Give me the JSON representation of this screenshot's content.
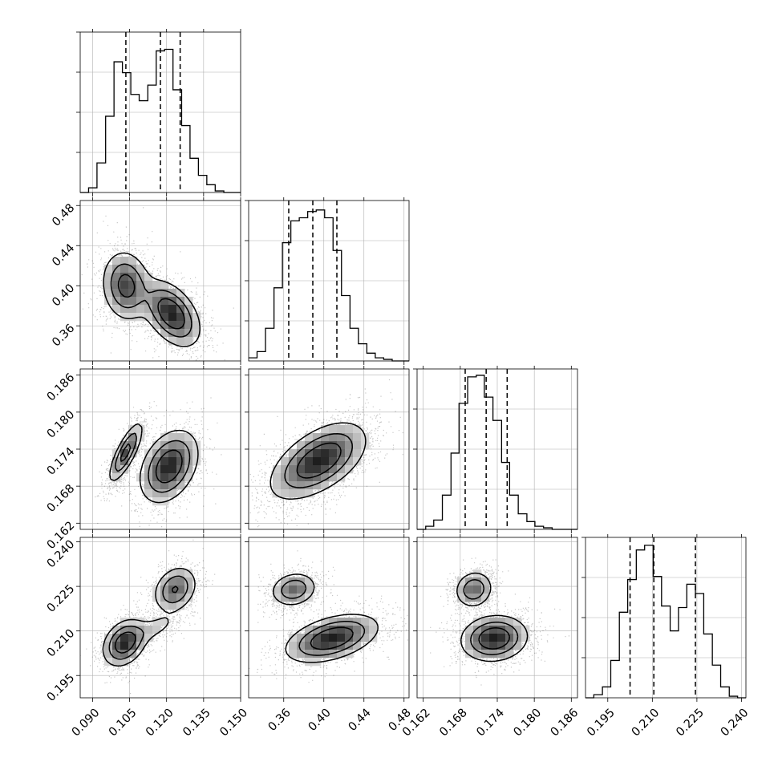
{
  "chart_data": {
    "type": "corner",
    "parameters": [
      {
        "range": [
          0.085,
          0.15
        ],
        "ticks": [
          0.09,
          0.105,
          0.12,
          0.135,
          0.15
        ],
        "tick_labels": [
          "0.090",
          "0.105",
          "0.120",
          "0.135",
          "0.150"
        ],
        "quantiles": [
          0.1035,
          0.1175,
          0.1255
        ],
        "hist": {
          "bin_edges": [
            0.085,
            0.0884,
            0.0918,
            0.0953,
            0.0987,
            0.1021,
            0.1055,
            0.1089,
            0.1124,
            0.1158,
            0.1192,
            0.1226,
            0.1261,
            0.1295,
            0.1329,
            0.1363,
            0.1397,
            0.1432,
            0.1466,
            0.15
          ],
          "heights": [
            0.0,
            0.03,
            0.19,
            0.49,
            0.84,
            0.77,
            0.63,
            0.59,
            0.69,
            0.91,
            0.92,
            0.66,
            0.43,
            0.22,
            0.11,
            0.05,
            0.01,
            0.0,
            0.0
          ]
        }
      },
      {
        "range": [
          0.325,
          0.485
        ],
        "ticks": [
          0.36,
          0.4,
          0.44,
          0.48
        ],
        "tick_labels": [
          "0.36",
          "0.40",
          "0.44",
          "0.48"
        ],
        "quantiles": [
          0.365,
          0.389,
          0.413
        ],
        "hist": {
          "bin_edges": [
            0.325,
            0.3334,
            0.3418,
            0.3503,
            0.3587,
            0.3671,
            0.3755,
            0.3839,
            0.3924,
            0.4008,
            0.4092,
            0.4176,
            0.4261,
            0.4345,
            0.4429,
            0.4513,
            0.4597,
            0.4682,
            0.4766,
            0.485
          ],
          "heights": [
            0.02,
            0.06,
            0.21,
            0.47,
            0.76,
            0.9,
            0.92,
            0.96,
            0.97,
            0.92,
            0.71,
            0.42,
            0.21,
            0.11,
            0.05,
            0.02,
            0.01,
            0.0,
            0.0
          ]
        }
      },
      {
        "range": [
          0.161,
          0.187
        ],
        "ticks": [
          0.162,
          0.168,
          0.174,
          0.18,
          0.186
        ],
        "tick_labels": [
          "0.162",
          "0.168",
          "0.174",
          "0.180",
          "0.186"
        ],
        "quantiles": [
          0.1688,
          0.1722,
          0.1756
        ],
        "hist": {
          "bin_edges": [
            0.161,
            0.1624,
            0.1637,
            0.1651,
            0.1665,
            0.1678,
            0.1692,
            0.1706,
            0.1719,
            0.1733,
            0.1747,
            0.176,
            0.1774,
            0.1788,
            0.1801,
            0.1815,
            0.1829,
            0.1842,
            0.1856,
            0.187
          ],
          "heights": [
            0.0,
            0.02,
            0.06,
            0.22,
            0.49,
            0.81,
            0.98,
            0.99,
            0.85,
            0.7,
            0.43,
            0.22,
            0.1,
            0.05,
            0.02,
            0.01,
            0.0,
            0.0,
            0.0
          ]
        }
      },
      {
        "range": [
          0.1875,
          0.2415
        ],
        "ticks": [
          0.195,
          0.21,
          0.225,
          0.24
        ],
        "tick_labels": [
          "0.195",
          "0.210",
          "0.225",
          "0.240"
        ],
        "quantiles": [
          0.2025,
          0.2105,
          0.2245
        ],
        "hist": {
          "bin_edges": [
            0.1875,
            0.1903,
            0.1932,
            0.196,
            0.1989,
            0.2017,
            0.2046,
            0.2074,
            0.2103,
            0.2131,
            0.216,
            0.2188,
            0.2216,
            0.2245,
            0.2273,
            0.2302,
            0.233,
            0.2359,
            0.2387,
            0.2415
          ],
          "heights": [
            0.0,
            0.02,
            0.07,
            0.24,
            0.55,
            0.76,
            0.95,
            0.98,
            0.78,
            0.59,
            0.43,
            0.58,
            0.73,
            0.67,
            0.41,
            0.21,
            0.07,
            0.01,
            0.0
          ]
        }
      }
    ],
    "pairs": [
      {
        "row": 1,
        "col": 0,
        "blobs": [
          {
            "cx": 0.1035,
            "cy": 0.4,
            "sx": 0.005,
            "sy": 0.018,
            "rho": -0.1,
            "w": 0.45
          },
          {
            "cx": 0.122,
            "cy": 0.372,
            "sx": 0.006,
            "sy": 0.017,
            "rho": -0.45,
            "w": 0.55
          }
        ],
        "contour_levels": [
          0.16,
          0.4,
          0.68
        ]
      },
      {
        "row": 2,
        "col": 0,
        "blobs": [
          {
            "cx": 0.1035,
            "cy": 0.1735,
            "sx": 0.0035,
            "sy": 0.0025,
            "rho": 0.8,
            "w": 0.45
          },
          {
            "cx": 0.121,
            "cy": 0.1712,
            "sx": 0.006,
            "sy": 0.003,
            "rho": 0.35,
            "w": 0.55
          }
        ],
        "contour_levels": [
          0.15,
          0.38,
          0.68
        ]
      },
      {
        "row": 2,
        "col": 1,
        "blobs": [
          {
            "cx": 0.388,
            "cy": 0.1715,
            "sx": 0.024,
            "sy": 0.0032,
            "rho": 0.55,
            "w": 0.6
          },
          {
            "cx": 0.405,
            "cy": 0.173,
            "sx": 0.022,
            "sy": 0.003,
            "rho": 0.45,
            "w": 0.4
          }
        ],
        "contour_levels": [
          0.16,
          0.4,
          0.68
        ]
      },
      {
        "row": 3,
        "col": 0,
        "blobs": [
          {
            "cx": 0.103,
            "cy": 0.206,
            "sx": 0.0045,
            "sy": 0.004,
            "rho": 0.3,
            "w": 0.55
          },
          {
            "cx": 0.1235,
            "cy": 0.224,
            "sx": 0.0045,
            "sy": 0.004,
            "rho": 0.25,
            "w": 0.4
          },
          {
            "cx": 0.115,
            "cy": 0.211,
            "sx": 0.006,
            "sy": 0.003,
            "rho": 0.6,
            "w": 0.12
          }
        ],
        "contour_levels": [
          0.15,
          0.38,
          0.68
        ]
      },
      {
        "row": 3,
        "col": 1,
        "blobs": [
          {
            "cx": 0.37,
            "cy": 0.224,
            "sx": 0.012,
            "sy": 0.003,
            "rho": 0.15,
            "w": 0.4
          },
          {
            "cx": 0.408,
            "cy": 0.2075,
            "sx": 0.024,
            "sy": 0.0042,
            "rho": 0.45,
            "w": 0.6
          }
        ],
        "contour_levels": [
          0.16,
          0.4,
          0.68
        ]
      },
      {
        "row": 3,
        "col": 2,
        "blobs": [
          {
            "cx": 0.1702,
            "cy": 0.224,
            "sx": 0.0016,
            "sy": 0.0032,
            "rho": 0.1,
            "w": 0.4
          },
          {
            "cx": 0.1735,
            "cy": 0.2075,
            "sx": 0.0028,
            "sy": 0.004,
            "rho": 0.1,
            "w": 0.6
          }
        ],
        "contour_levels": [
          0.16,
          0.4,
          0.68
        ]
      }
    ]
  }
}
